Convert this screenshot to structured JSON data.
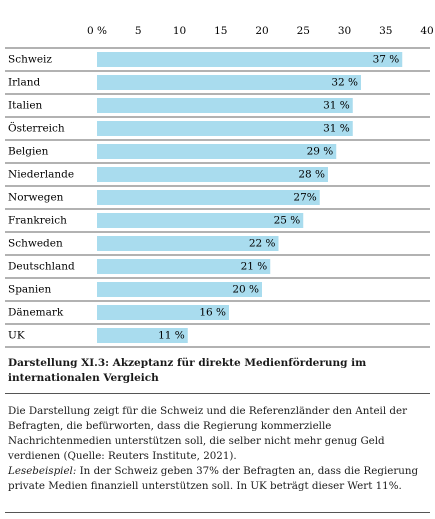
{
  "chart_data": {
    "type": "barh",
    "categories": [
      "Schweiz",
      "Irland",
      "Italien",
      "Österreich",
      "Belgien",
      "Niederlande",
      "Norwegen",
      "Frankreich",
      "Schweden",
      "Deutschland",
      "Spanien",
      "Dänemark",
      "UK"
    ],
    "values": [
      37,
      32,
      31,
      31,
      29,
      28,
      27,
      25,
      22,
      21,
      20,
      16,
      11
    ],
    "value_labels": [
      "37 %",
      "32 %",
      "31 %",
      "31 %",
      "29 %",
      "28 %",
      "27%",
      "25 %",
      "22 %",
      "21 %",
      "20 %",
      "16 %",
      "11 %"
    ],
    "color": "#a9dcee",
    "xlim": [
      0,
      40
    ],
    "xticks": [
      {
        "value": 0,
        "label": "0 %"
      },
      5,
      10,
      15,
      20,
      25,
      30,
      35,
      40
    ],
    "grid": false,
    "title": "Darstellung XI.3: Akzeptanz für direkte Medienförderung im internationalen Vergleich",
    "description": "Die Darstellung zeigt für die Schweiz und die Referenzländer den Anteil der Befragten, die befürworten, dass die Regierung kommerzielle Nachrichtenmedien unterstützen soll, die selber nicht mehr genug Geld verdienen (Quelle: Reuters Institute, 2021).",
    "example_label": "Lesebeispiel:",
    "example_text": "In der Schweiz geben 37% der Befragten an, dass die Regierung private Medien finanziell unterstützen soll. In UK beträgt dieser Wert 11%."
  }
}
